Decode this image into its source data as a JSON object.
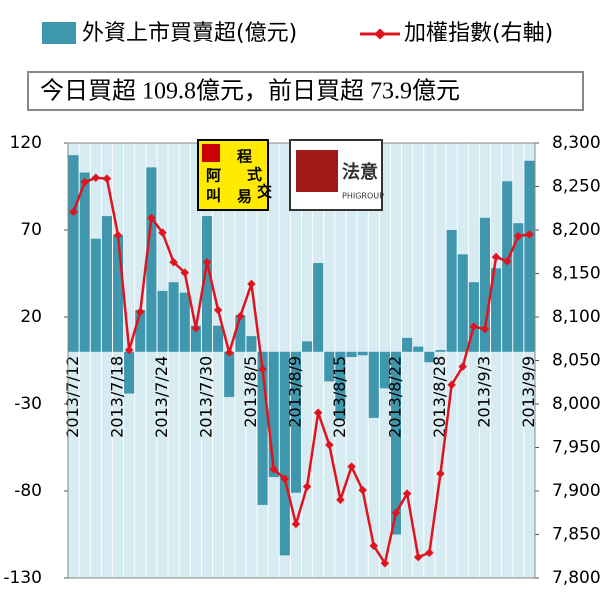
{
  "chart_data": {
    "type": "bar_line",
    "legend": {
      "bar": "外資上市買賣超(億元)",
      "line": "加權指數(右軸)"
    },
    "annotation": "今日買超 109.8億元，前日買超 73.9億元",
    "logos": {
      "left": [
        "程",
        "式",
        "交",
        "易",
        "阿",
        "叫"
      ],
      "right": [
        "法意",
        "PHIGROUP"
      ]
    },
    "categories": [
      "2013/7/12",
      null,
      null,
      null,
      "2013/7/18",
      null,
      null,
      null,
      "2013/7/24",
      null,
      null,
      null,
      "2013/7/30",
      null,
      null,
      null,
      "2013/8/5",
      null,
      null,
      null,
      "2013/8/9",
      null,
      null,
      null,
      "2013/8/15",
      null,
      null,
      null,
      null,
      "2013/8/22",
      null,
      null,
      null,
      "2013/8/28",
      null,
      null,
      null,
      "2013/9/3",
      null,
      null,
      null,
      "2013/9/9"
    ],
    "series": [
      {
        "name": "外資上市買賣超(億元)",
        "color": "#3f97ae",
        "values": [
          113,
          103,
          65,
          78,
          67,
          -24,
          24,
          106,
          35,
          40,
          34,
          15,
          78,
          15,
          -26,
          21,
          9,
          -88,
          -72,
          -117,
          -81,
          6,
          51,
          -17,
          -39,
          -3,
          -2,
          -38,
          -21,
          -105,
          8,
          3,
          -6,
          1,
          70,
          56,
          40,
          77,
          48,
          98,
          73.9,
          109.8
        ]
      },
      {
        "name": "加權指數(右軸)",
        "color": "#e0141e",
        "axis": "y2",
        "values": [
          8221,
          8255,
          8260,
          8259,
          8194,
          8062,
          8106,
          8214,
          8197,
          8163,
          8151,
          8087,
          8163,
          8108,
          8059,
          8101,
          8138,
          8040,
          7925,
          7914,
          7862,
          7905,
          7990,
          7953,
          7890,
          7928,
          7901,
          7837,
          7817,
          7875,
          7897,
          7824,
          7829,
          7920,
          8022,
          8043,
          8089,
          8086,
          8169,
          8164,
          8193,
          8195
        ]
      }
    ],
    "ylim": [
      -130,
      120
    ],
    "yticks": [
      120,
      70,
      20,
      -30,
      -80,
      -130
    ],
    "y2lim": [
      7800,
      8300
    ],
    "y2ticks": [
      {
        "value": 8300,
        "label": "8,300"
      },
      {
        "value": 8250,
        "label": "8,250"
      },
      {
        "value": 8200,
        "label": "8,200"
      },
      {
        "value": 8150,
        "label": "8,150"
      },
      {
        "value": 8100,
        "label": "8,100"
      },
      {
        "value": 8050,
        "label": "8,050"
      },
      {
        "value": 8000,
        "label": "8,000"
      },
      {
        "value": 7950,
        "label": "7,950"
      },
      {
        "value": 7900,
        "label": "7,900"
      },
      {
        "value": 7850,
        "label": "7,850"
      },
      {
        "value": 7800,
        "label": "7,800"
      }
    ],
    "grid": true,
    "plot_background": "#d6ebf2"
  }
}
